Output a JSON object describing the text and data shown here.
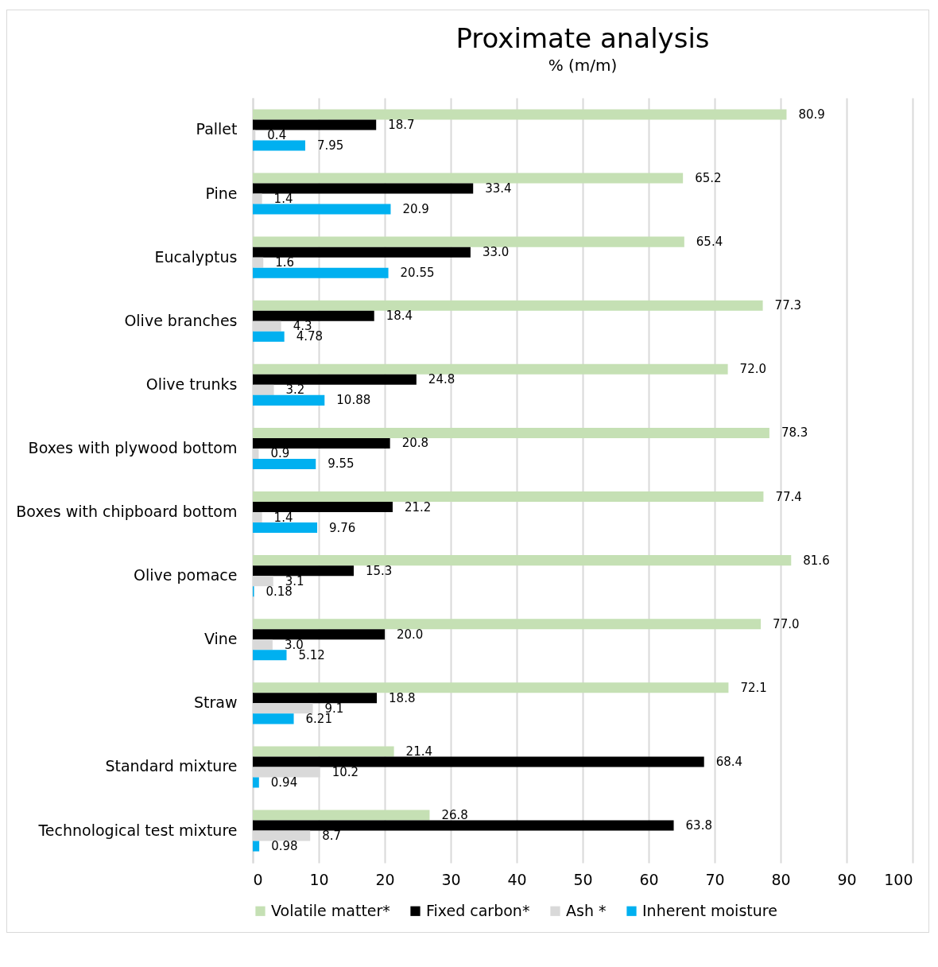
{
  "chart_data": {
    "type": "bar",
    "orientation": "horizontal",
    "title": "Proximate analysis",
    "subtitle": "% (m/m)",
    "categories": [
      "Pallet",
      "Pine",
      "Eucalyptus",
      "Olive branches",
      "Olive trunks",
      "Boxes with plywood bottom",
      "Boxes with chipboard bottom",
      "Olive pomace",
      "Vine",
      "Straw",
      "Standard mixture",
      "Technological test mixture"
    ],
    "series": [
      {
        "name": "Volatile matter*",
        "color": "#c5e0b4",
        "values": [
          80.9,
          65.2,
          65.4,
          77.3,
          72.0,
          78.3,
          77.4,
          81.6,
          77.0,
          72.1,
          21.4,
          26.8
        ],
        "value_labels": [
          "80.9",
          "65.2",
          "65.4",
          "77.3",
          "72.0",
          "78.3",
          "77.4",
          "81.6",
          "77.0",
          "72.1",
          "21.4",
          "26.8"
        ]
      },
      {
        "name": "Fixed carbon*",
        "color": "#000000",
        "values": [
          18.7,
          33.4,
          33.0,
          18.4,
          24.8,
          20.8,
          21.2,
          15.3,
          20.0,
          18.8,
          68.4,
          63.8
        ],
        "value_labels": [
          "18.7",
          "33.4",
          "33.0",
          "18.4",
          "24.8",
          "20.8",
          "21.2",
          "15.3",
          "20.0",
          "18.8",
          "68.4",
          "63.8"
        ]
      },
      {
        "name": "Ash *",
        "color": "#d9d9d9",
        "values": [
          0.4,
          1.4,
          1.6,
          4.3,
          3.2,
          0.9,
          1.4,
          3.1,
          3.0,
          9.1,
          10.2,
          8.7
        ],
        "value_labels": [
          "0.4",
          "1.4",
          "1.6",
          "4.3",
          "3.2",
          "0.9",
          "1.4",
          "3.1",
          "3.0",
          "9.1",
          "10.2",
          "8.7"
        ]
      },
      {
        "name": "Inherent moisture",
        "color": "#00b0f0",
        "values": [
          7.95,
          20.9,
          20.55,
          4.78,
          10.88,
          9.55,
          9.76,
          0.18,
          5.12,
          6.21,
          0.94,
          0.98
        ],
        "value_labels": [
          "7.95",
          "20.9",
          "20.55",
          "4.78",
          "10.88",
          "9.55",
          "9.76",
          "0.18",
          "5.12",
          "6.21",
          "0.94",
          "0.98"
        ]
      }
    ],
    "xlim": [
      0,
      100
    ],
    "xticks": [
      0,
      10,
      20,
      30,
      40,
      50,
      60,
      70,
      80,
      90,
      100
    ],
    "grid": "x",
    "legend": "bottom"
  }
}
